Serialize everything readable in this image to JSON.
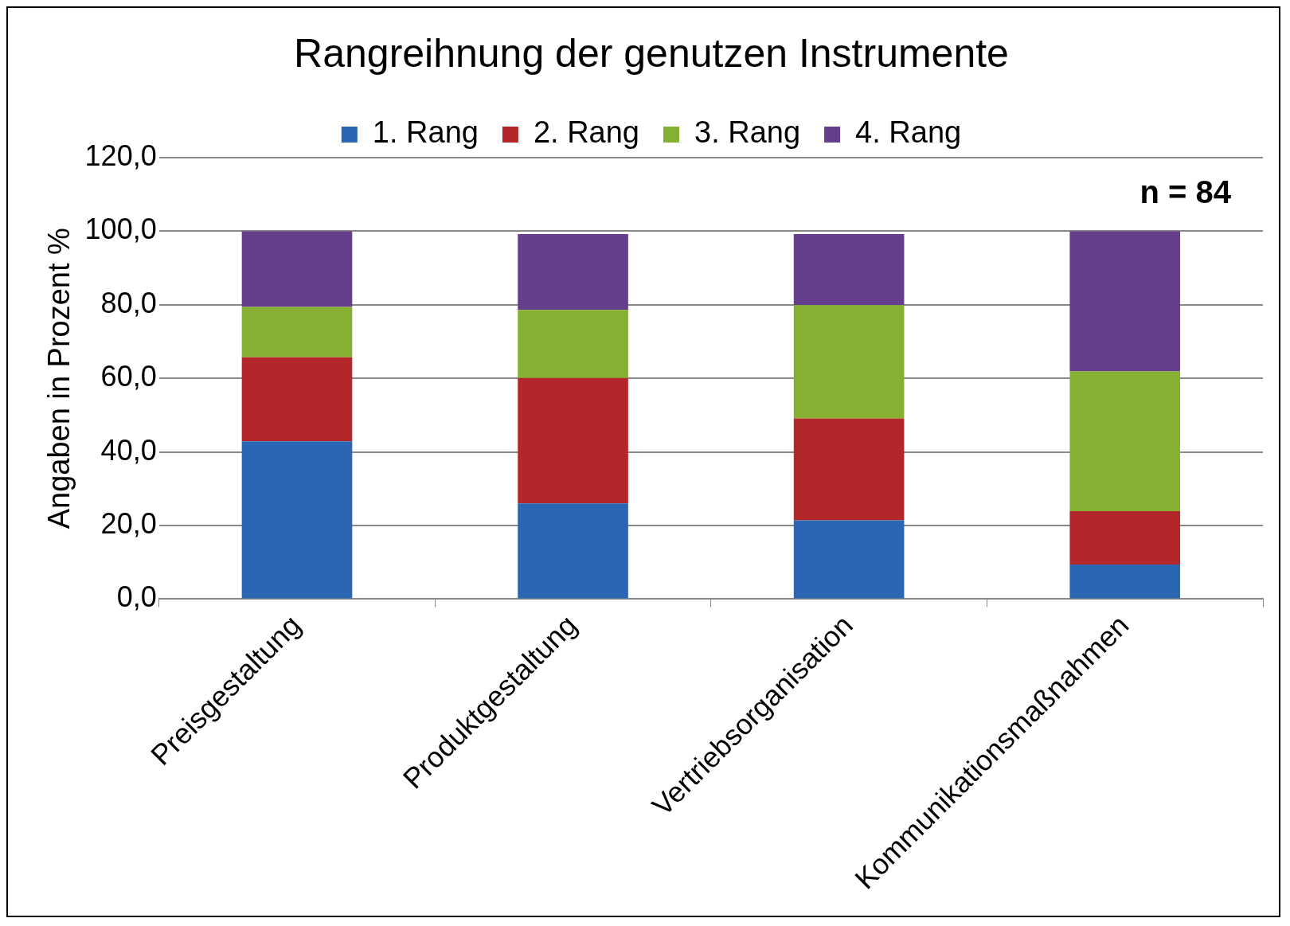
{
  "chart_data": {
    "type": "bar",
    "title": "Rangreihnung der genutzen Instrumente",
    "ylabel": "Angaben in Prozent %",
    "categories": [
      "Preisgestaltung",
      "Produktgestaltung",
      "Vertriebsorganisation",
      "Kommunikationsmaßnahmen"
    ],
    "stacked": true,
    "series": [
      {
        "name": "1. Rang",
        "color": "#2a66b1",
        "values": [
          42.9,
          26.0,
          21.4,
          9.4
        ]
      },
      {
        "name": "2. Rang",
        "color": "#b3272a",
        "values": [
          22.8,
          34.1,
          27.7,
          14.5
        ]
      },
      {
        "name": "3. Rang",
        "color": "#86b032",
        "values": [
          13.7,
          18.5,
          30.8,
          38.0
        ]
      },
      {
        "name": "4. Rang",
        "color": "#653e8c",
        "values": [
          20.6,
          20.6,
          19.3,
          38.1
        ]
      }
    ],
    "ylim": [
      0,
      120
    ],
    "yticks": [
      {
        "value": 0,
        "label": "0,0"
      },
      {
        "value": 20,
        "label": "20,0"
      },
      {
        "value": 40,
        "label": "40,0"
      },
      {
        "value": 60,
        "label": "60,0"
      },
      {
        "value": 80,
        "label": "80,0"
      },
      {
        "value": 100,
        "label": "100,0"
      },
      {
        "value": 120,
        "label": "120,0"
      }
    ],
    "grid": "y",
    "legend": "top",
    "annotations": [
      "n = 84"
    ]
  }
}
